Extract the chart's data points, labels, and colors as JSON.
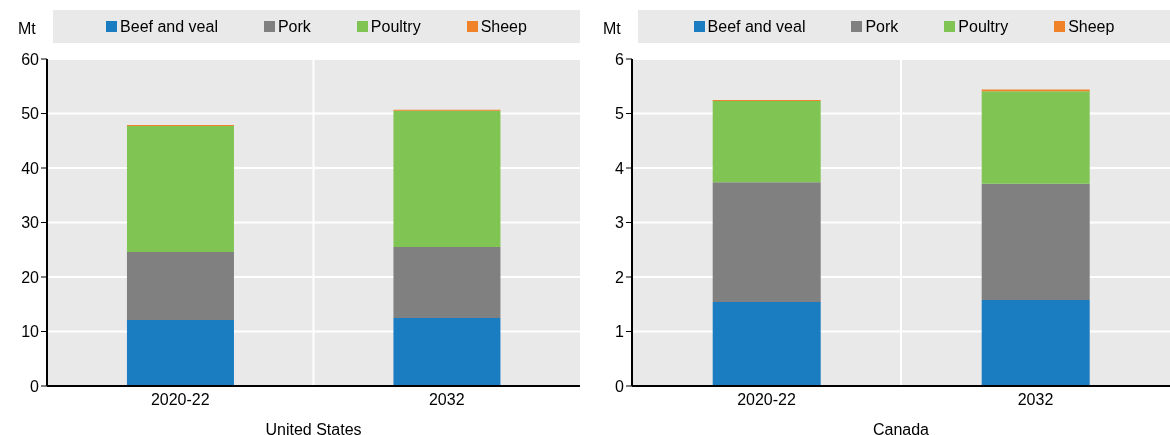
{
  "chart_data": [
    {
      "type": "bar",
      "stacked": true,
      "xlabel": "United States",
      "ylabel": "Mt",
      "categories": [
        "2020-22",
        "2032"
      ],
      "legend": "top",
      "grid": true,
      "ylim": [
        0,
        60
      ],
      "yticks": [
        0,
        10,
        20,
        30,
        40,
        50,
        60
      ],
      "series": [
        {
          "name": "Beef and veal",
          "color": "#1a7dc1",
          "values": [
            12.1,
            12.5
          ]
        },
        {
          "name": "Pork",
          "color": "#808080",
          "values": [
            12.5,
            13.0
          ]
        },
        {
          "name": "Poultry",
          "color": "#80c454",
          "values": [
            23.1,
            25.0
          ]
        },
        {
          "name": "Sheep",
          "color": "#f0832a",
          "values": [
            0.2,
            0.2
          ]
        }
      ]
    },
    {
      "type": "bar",
      "stacked": true,
      "xlabel": "Canada",
      "ylabel": "Mt",
      "categories": [
        "2020-22",
        "2032"
      ],
      "legend": "top",
      "grid": true,
      "ylim": [
        0,
        6
      ],
      "yticks": [
        0,
        1,
        2,
        3,
        4,
        5,
        6
      ],
      "series": [
        {
          "name": "Beef and veal",
          "color": "#1a7dc1",
          "values": [
            1.54,
            1.58
          ]
        },
        {
          "name": "Pork",
          "color": "#808080",
          "values": [
            2.2,
            2.13
          ]
        },
        {
          "name": "Poultry",
          "color": "#80c454",
          "values": [
            1.49,
            1.7
          ]
        },
        {
          "name": "Sheep",
          "color": "#f0832a",
          "values": [
            0.02,
            0.03
          ]
        }
      ]
    }
  ]
}
